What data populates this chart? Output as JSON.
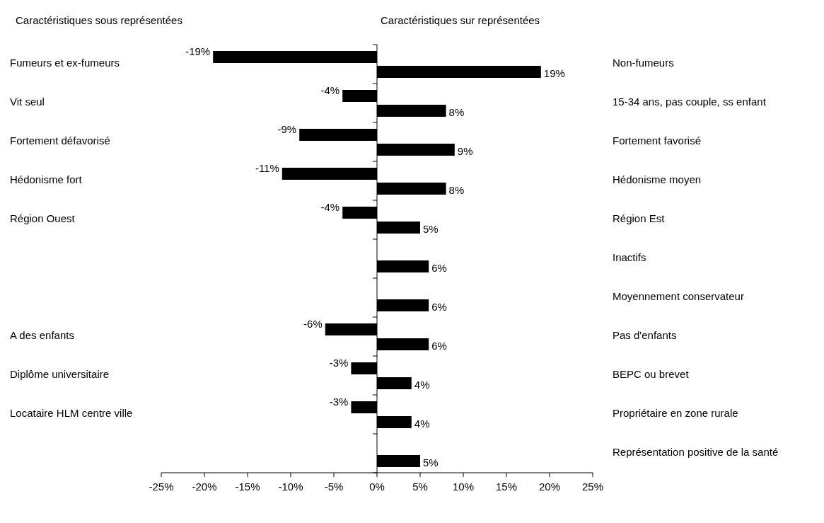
{
  "chart_data": {
    "type": "bar",
    "orientation": "horizontal",
    "annotations": [
      "Caractéristiques sous représentées",
      "Caractéristiques sur représentées"
    ],
    "categories": [
      "Non-fumeurs",
      "15-34 ans, pas couple, ss enfant",
      "Fortement favorisé",
      "Hédonisme moyen",
      "Région Est",
      "Inactifs",
      "Moyennement conservateur",
      "Pas d'enfants",
      "BEPC ou brevet",
      "Propriétaire en zone rurale",
      "Représentation positive de la santé"
    ],
    "y2_categories": [
      "Fumeurs et ex-fumeurs",
      "Vit seul",
      "Fortement défavorisé",
      "Hédonisme fort",
      "Région Ouest",
      null,
      null,
      "A des enfants",
      "Diplôme universitaire",
      "Locataire HLM centre ville",
      null
    ],
    "series": [
      {
        "color": "#000000",
        "values": [
          -19,
          -4,
          -9,
          -11,
          -4,
          null,
          null,
          -6,
          -3,
          -3,
          null
        ],
        "value_labels": [
          "-19%",
          "-4%",
          "-9%",
          "-11%",
          "-4%",
          null,
          null,
          "-6%",
          "-3%",
          "-3%",
          null
        ]
      },
      {
        "color": "#000000",
        "values": [
          19,
          8,
          9,
          8,
          5,
          6,
          6,
          6,
          4,
          4,
          5
        ],
        "value_labels": [
          "19%",
          "8%",
          "9%",
          "8%",
          "5%",
          "6%",
          "6%",
          "6%",
          "4%",
          "4%",
          "5%"
        ]
      }
    ],
    "xlim": [
      -25,
      25
    ],
    "xticks": [
      {
        "value": -25,
        "label": "-25%"
      },
      {
        "value": -20,
        "label": "-20%"
      },
      {
        "value": -15,
        "label": "-15%"
      },
      {
        "value": -10,
        "label": "-10%"
      },
      {
        "value": -5,
        "label": "-5%"
      },
      {
        "value": 0,
        "label": "0%"
      },
      {
        "value": 5,
        "label": "5%"
      },
      {
        "value": 10,
        "label": "10%"
      },
      {
        "value": 15,
        "label": "15%"
      },
      {
        "value": 20,
        "label": "20%"
      },
      {
        "value": 25,
        "label": "25%"
      }
    ],
    "ref_lines": [
      {
        "axis": "x",
        "value": 0,
        "color": "#000000"
      }
    ],
    "grid": false,
    "legend": false
  }
}
